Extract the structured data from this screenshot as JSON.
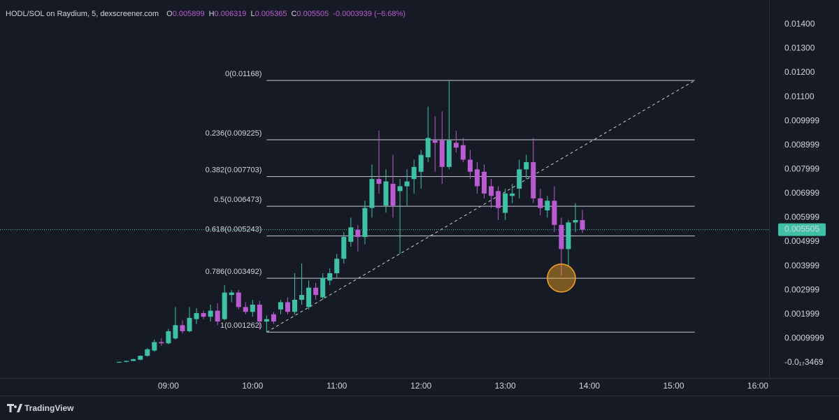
{
  "chart_data": {
    "type": "candlestick",
    "header": {
      "symbol": "HODL/SOL on Raydium, 5, dexscreener.com",
      "fields": [
        {
          "key": "O",
          "value": 0.005899
        },
        {
          "key": "H",
          "value": 0.006319
        },
        {
          "key": "L",
          "value": 0.005365
        },
        {
          "key": "C",
          "value": 0.005505
        }
      ],
      "change": "-0.0003939 (−6.68%)"
    },
    "x": [
      "08:25",
      "08:30",
      "08:35",
      "08:40",
      "08:45",
      "08:50",
      "08:55",
      "09:00",
      "09:05",
      "09:10",
      "09:15",
      "09:20",
      "09:25",
      "09:30",
      "09:35",
      "09:40",
      "09:45",
      "09:50",
      "09:55",
      "10:00",
      "10:05",
      "10:10",
      "10:15",
      "10:20",
      "10:25",
      "10:30",
      "10:35",
      "10:40",
      "10:45",
      "10:50",
      "10:55",
      "11:00",
      "11:05",
      "11:10",
      "11:15",
      "11:20",
      "11:25",
      "11:30",
      "11:35",
      "11:40",
      "11:45",
      "11:50",
      "11:55",
      "12:00",
      "12:05",
      "12:10",
      "12:15",
      "12:20",
      "12:25",
      "12:30",
      "12:35",
      "12:40",
      "12:45",
      "12:50",
      "12:55",
      "13:00",
      "13:05",
      "13:10",
      "13:15",
      "13:20",
      "13:25",
      "13:30",
      "13:35",
      "13:40",
      "13:45",
      "13:50",
      "13:55"
    ],
    "open": [
      0.0,
      3e-05,
      7e-05,
      0.00012,
      0.00028,
      0.0005,
      0.00085,
      0.0008,
      0.001,
      0.00155,
      0.0013,
      0.0018,
      0.00205,
      0.0019,
      0.00215,
      0.0018,
      0.0028,
      0.0029,
      0.0023,
      0.0021,
      0.0024,
      0.0017,
      0.002,
      0.0022,
      0.0025,
      0.0021,
      0.0026,
      0.0023,
      0.0031,
      0.0027,
      0.0034,
      0.0037,
      0.0043,
      0.005,
      0.0055,
      0.0052,
      0.0064,
      0.0076,
      0.0065,
      0.0074,
      0.0071,
      0.0073,
      0.0076,
      0.0079,
      0.0085,
      0.0092,
      0.0092,
      0.0081,
      0.0091,
      0.009,
      0.0084,
      0.008,
      0.0079,
      0.0073,
      0.0071,
      0.0062,
      0.0069,
      0.0072,
      0.008,
      0.0083,
      0.0068,
      0.0063,
      0.0067,
      0.0057,
      0.0047,
      0.0058,
      0.005899
    ],
    "high": [
      4e-05,
      8e-05,
      0.00016,
      0.0003,
      0.0006,
      0.00095,
      0.001,
      0.0014,
      0.0023,
      0.00175,
      0.0023,
      0.00225,
      0.00215,
      0.0024,
      0.00245,
      0.0032,
      0.003,
      0.003,
      0.0025,
      0.0026,
      0.00255,
      0.00195,
      0.0021,
      0.0026,
      0.0027,
      0.0037,
      0.0041,
      0.0034,
      0.0033,
      0.0037,
      0.0039,
      0.0045,
      0.0054,
      0.006,
      0.0057,
      0.0067,
      0.0082,
      0.0096,
      0.008,
      0.0086,
      0.0076,
      0.008,
      0.0084,
      0.0088,
      0.0106,
      0.0102,
      0.0104,
      0.01168,
      0.0096,
      0.0093,
      0.0088,
      0.0083,
      0.0082,
      0.0076,
      0.0073,
      0.0072,
      0.0074,
      0.0084,
      0.0086,
      0.0093,
      0.0072,
      0.0069,
      0.0073,
      0.006,
      0.0059,
      0.0066,
      0.006319
    ],
    "low": [
      -1e-05,
      2e-05,
      6e-05,
      0.0001,
      0.00025,
      0.00045,
      0.0007,
      0.00075,
      0.00095,
      0.0012,
      0.00125,
      0.0016,
      0.0018,
      0.0017,
      0.00155,
      0.00175,
      0.0025,
      0.0022,
      0.002,
      0.0019,
      0.0014,
      0.00126,
      0.0016,
      0.002,
      0.002,
      0.002,
      0.0024,
      0.0022,
      0.0026,
      0.0026,
      0.0032,
      0.0035,
      0.0041,
      0.0048,
      0.0046,
      0.0049,
      0.006,
      0.007,
      0.0062,
      0.006,
      0.0045,
      0.0065,
      0.007,
      0.0072,
      0.0083,
      0.0079,
      0.0074,
      0.008,
      0.0087,
      0.0083,
      0.0076,
      0.007,
      0.0068,
      0.0064,
      0.0059,
      0.0059,
      0.0066,
      0.0068,
      0.0076,
      0.0066,
      0.0061,
      0.006,
      0.0054,
      0.0036,
      0.004,
      0.0054,
      0.005365
    ],
    "close": [
      3e-05,
      7e-05,
      0.00014,
      0.00028,
      0.00055,
      0.00085,
      0.0008,
      0.0013,
      0.00155,
      0.0013,
      0.00185,
      0.00205,
      0.0019,
      0.00215,
      0.0017,
      0.0029,
      0.0029,
      0.0023,
      0.0021,
      0.0024,
      0.0017,
      0.0018,
      0.0017,
      0.0025,
      0.0021,
      0.0026,
      0.0028,
      0.0031,
      0.0028,
      0.0035,
      0.0037,
      0.0043,
      0.0052,
      0.0056,
      0.0052,
      0.0064,
      0.0076,
      0.0074,
      0.0075,
      0.0065,
      0.0073,
      0.0075,
      0.0081,
      0.0086,
      0.0093,
      0.0091,
      0.0081,
      0.0092,
      0.0089,
      0.0084,
      0.0079,
      0.0073,
      0.007,
      0.0069,
      0.0064,
      0.007,
      0.007,
      0.008,
      0.0083,
      0.0068,
      0.0064,
      0.0067,
      0.0057,
      0.0047,
      0.0058,
      0.0059,
      0.005505
    ],
    "up_color": "#3fc1a5",
    "down_color": "#b95bd1",
    "xlim": [
      "07:00",
      "16:08"
    ],
    "xticks": [
      "09:00",
      "10:00",
      "11:00",
      "12:00",
      "13:00",
      "14:00",
      "15:00",
      "16:00"
    ],
    "ylim": [
      -0.00064,
      0.01501
    ],
    "yticks": [
      {
        "value": 0.014,
        "label": "0.01400"
      },
      {
        "value": 0.013,
        "label": "0.01300"
      },
      {
        "value": 0.012,
        "label": "0.01200"
      },
      {
        "value": 0.011,
        "label": "0.01100"
      },
      0.009999,
      0.008999,
      0.007999,
      0.006999,
      0.005999,
      0.004999,
      0.003999,
      0.002999,
      0.001999,
      0.0009999,
      {
        "value": -3.469e-18,
        "label": "-0.0₁₇3469"
      }
    ],
    "last_price": 0.005505,
    "fib_x": [
      "10:10",
      "15:15"
    ],
    "fib_levels": [
      {
        "label": "0(0.01168)",
        "value": 0.01168
      },
      {
        "label": "0.236(0.009225)",
        "value": 0.009225
      },
      {
        "label": "0.382(0.007703)",
        "value": 0.007703
      },
      {
        "label": "0.5(0.006473)",
        "value": 0.006473
      },
      {
        "label": "0.618(0.005243)",
        "value": 0.005243
      },
      {
        "label": "0.786(0.003492)",
        "value": 0.003492
      },
      {
        "label": "1(0.001262)",
        "value": 0.001262
      }
    ],
    "highlight": {
      "x": "13:40",
      "y": 0.0035,
      "color": "#f5a623"
    },
    "branding": "TradingView"
  }
}
